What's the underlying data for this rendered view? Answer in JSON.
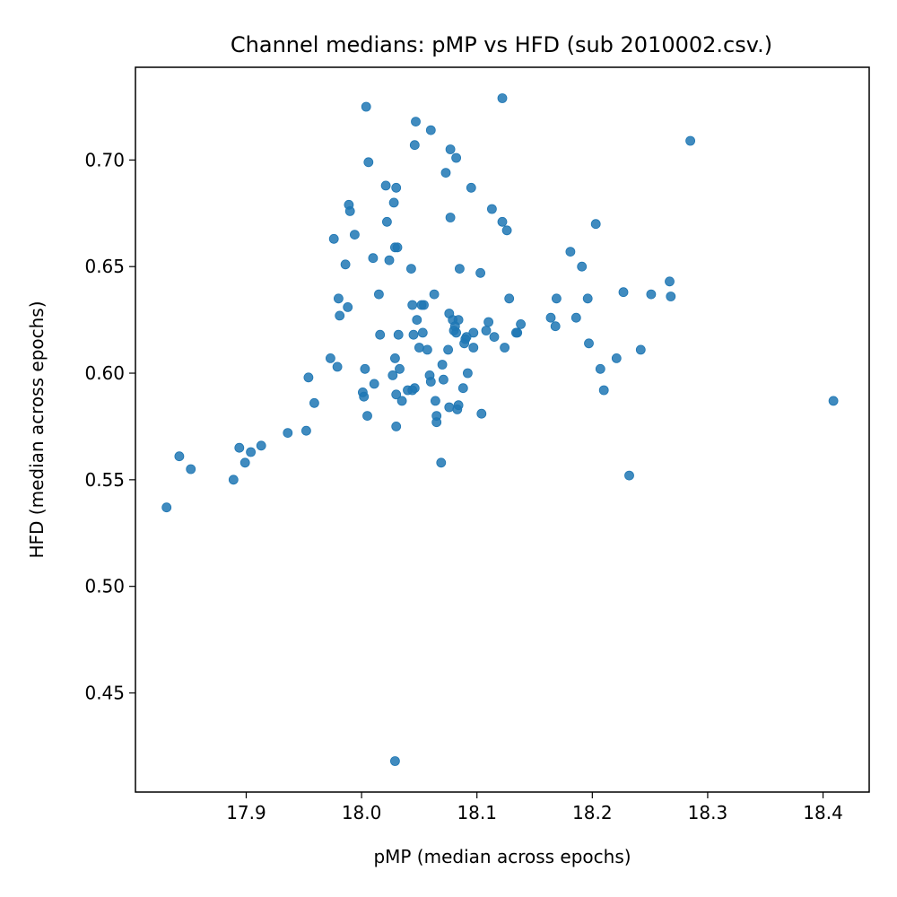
{
  "chart_data": {
    "type": "scatter",
    "title": "Channel medians: pMP vs HFD (sub 2010002.csv.)",
    "xlabel": "pMP (median across epochs)",
    "ylabel": "HFD (median across epochs)",
    "xlim": [
      17.804,
      18.44
    ],
    "ylim": [
      0.4035,
      0.7435
    ],
    "xticks": [
      17.9,
      18.0,
      18.1,
      18.2,
      18.3,
      18.4
    ],
    "xtick_labels": [
      "17.9",
      "18.0",
      "18.1",
      "18.2",
      "18.3",
      "18.4"
    ],
    "yticks": [
      0.45,
      0.5,
      0.55,
      0.6,
      0.65,
      0.7
    ],
    "ytick_labels": [
      "0.45",
      "0.50",
      "0.55",
      "0.60",
      "0.65",
      "0.70"
    ],
    "grid": false,
    "marker_color": "#1f77b4",
    "points": [
      [
        17.831,
        0.537
      ],
      [
        17.842,
        0.561
      ],
      [
        17.852,
        0.555
      ],
      [
        17.889,
        0.55
      ],
      [
        17.894,
        0.565
      ],
      [
        17.899,
        0.558
      ],
      [
        17.904,
        0.563
      ],
      [
        17.913,
        0.566
      ],
      [
        17.936,
        0.572
      ],
      [
        17.952,
        0.573
      ],
      [
        17.954,
        0.598
      ],
      [
        17.959,
        0.586
      ],
      [
        17.973,
        0.607
      ],
      [
        17.976,
        0.663
      ],
      [
        17.979,
        0.603
      ],
      [
        17.98,
        0.635
      ],
      [
        17.981,
        0.627
      ],
      [
        17.986,
        0.651
      ],
      [
        17.988,
        0.631
      ],
      [
        17.989,
        0.679
      ],
      [
        17.99,
        0.676
      ],
      [
        17.994,
        0.665
      ],
      [
        18.001,
        0.591
      ],
      [
        18.002,
        0.589
      ],
      [
        18.003,
        0.602
      ],
      [
        18.004,
        0.725
      ],
      [
        18.005,
        0.58
      ],
      [
        18.006,
        0.699
      ],
      [
        18.01,
        0.654
      ],
      [
        18.011,
        0.595
      ],
      [
        18.015,
        0.637
      ],
      [
        18.016,
        0.618
      ],
      [
        18.021,
        0.688
      ],
      [
        18.022,
        0.671
      ],
      [
        18.024,
        0.653
      ],
      [
        18.027,
        0.599
      ],
      [
        18.028,
        0.68
      ],
      [
        18.029,
        0.607
      ],
      [
        18.029,
        0.659
      ],
      [
        18.03,
        0.687
      ],
      [
        18.03,
        0.59
      ],
      [
        18.03,
        0.575
      ],
      [
        18.031,
        0.659
      ],
      [
        18.032,
        0.618
      ],
      [
        18.033,
        0.602
      ],
      [
        18.035,
        0.587
      ],
      [
        18.029,
        0.418
      ],
      [
        18.04,
        0.592
      ],
      [
        18.043,
        0.649
      ],
      [
        18.044,
        0.632
      ],
      [
        18.044,
        0.592
      ],
      [
        18.045,
        0.618
      ],
      [
        18.046,
        0.593
      ],
      [
        18.046,
        0.707
      ],
      [
        18.047,
        0.718
      ],
      [
        18.048,
        0.625
      ],
      [
        18.05,
        0.612
      ],
      [
        18.052,
        0.632
      ],
      [
        18.053,
        0.619
      ],
      [
        18.054,
        0.632
      ],
      [
        18.057,
        0.611
      ],
      [
        18.059,
        0.599
      ],
      [
        18.06,
        0.714
      ],
      [
        18.06,
        0.596
      ],
      [
        18.063,
        0.637
      ],
      [
        18.064,
        0.587
      ],
      [
        18.065,
        0.58
      ],
      [
        18.065,
        0.577
      ],
      [
        18.069,
        0.558
      ],
      [
        18.07,
        0.604
      ],
      [
        18.071,
        0.597
      ],
      [
        18.073,
        0.694
      ],
      [
        18.075,
        0.611
      ],
      [
        18.076,
        0.628
      ],
      [
        18.076,
        0.584
      ],
      [
        18.077,
        0.705
      ],
      [
        18.077,
        0.673
      ],
      [
        18.079,
        0.625
      ],
      [
        18.08,
        0.62
      ],
      [
        18.081,
        0.622
      ],
      [
        18.082,
        0.619
      ],
      [
        18.082,
        0.701
      ],
      [
        18.083,
        0.583
      ],
      [
        18.084,
        0.625
      ],
      [
        18.084,
        0.585
      ],
      [
        18.085,
        0.649
      ],
      [
        18.088,
        0.593
      ],
      [
        18.089,
        0.614
      ],
      [
        18.09,
        0.616
      ],
      [
        18.091,
        0.617
      ],
      [
        18.092,
        0.6
      ],
      [
        18.095,
        0.687
      ],
      [
        18.097,
        0.612
      ],
      [
        18.097,
        0.619
      ],
      [
        18.103,
        0.647
      ],
      [
        18.104,
        0.581
      ],
      [
        18.108,
        0.62
      ],
      [
        18.11,
        0.624
      ],
      [
        18.113,
        0.677
      ],
      [
        18.115,
        0.617
      ],
      [
        18.122,
        0.729
      ],
      [
        18.122,
        0.671
      ],
      [
        18.124,
        0.612
      ],
      [
        18.126,
        0.667
      ],
      [
        18.128,
        0.635
      ],
      [
        18.134,
        0.619
      ],
      [
        18.135,
        0.619
      ],
      [
        18.138,
        0.623
      ],
      [
        18.164,
        0.626
      ],
      [
        18.168,
        0.622
      ],
      [
        18.169,
        0.635
      ],
      [
        18.181,
        0.657
      ],
      [
        18.186,
        0.626
      ],
      [
        18.191,
        0.65
      ],
      [
        18.196,
        0.635
      ],
      [
        18.197,
        0.614
      ],
      [
        18.203,
        0.67
      ],
      [
        18.207,
        0.602
      ],
      [
        18.21,
        0.592
      ],
      [
        18.221,
        0.607
      ],
      [
        18.227,
        0.638
      ],
      [
        18.232,
        0.552
      ],
      [
        18.242,
        0.611
      ],
      [
        18.251,
        0.637
      ],
      [
        18.267,
        0.643
      ],
      [
        18.268,
        0.636
      ],
      [
        18.285,
        0.709
      ],
      [
        18.409,
        0.587
      ]
    ]
  }
}
